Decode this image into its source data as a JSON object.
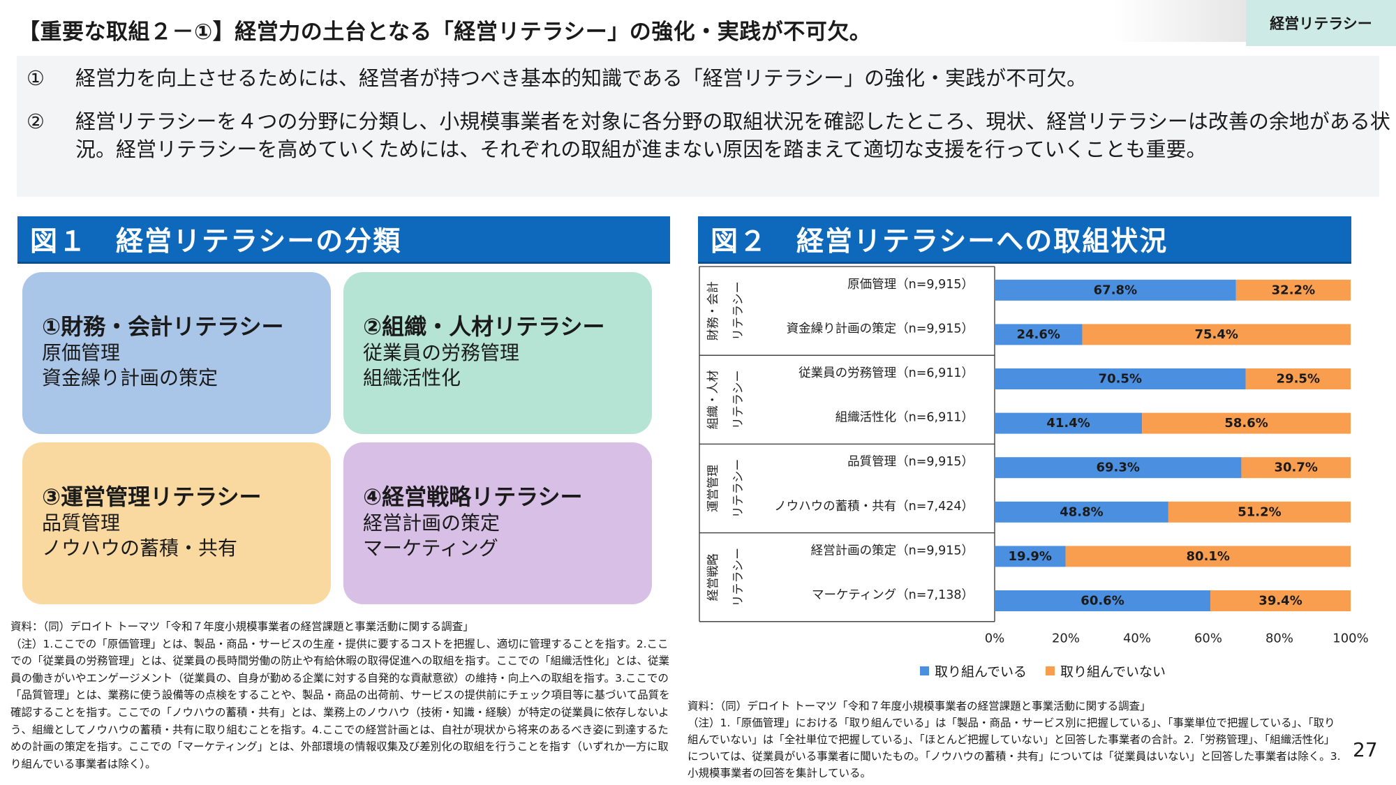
{
  "header": {
    "title": "【重要な取組２－①】経営力の土台となる「経営リテラシー」の強化・実践が不可欠。",
    "tag": "経営リテラシー"
  },
  "summary": [
    {
      "num": "①",
      "text": "経営力を向上させるためには、経営者が持つべき基本的知識である「経営リテラシー」の強化・実践が不可欠。"
    },
    {
      "num": "②",
      "text": "経営リテラシーを４つの分野に分類し、小規模事業者を対象に各分野の取組状況を確認したところ、現状、経営リテラシーは改善の余地がある状況。経営リテラシーを高めていくためには、それぞれの取組が進まない原因を踏まえて適切な支援を行っていくことも重要。"
    }
  ],
  "fig1": {
    "title": "図１　経営リテラシーの分類",
    "cards": [
      {
        "title": "①財務・会計リテラシー",
        "items": [
          "原価管理",
          "資金繰り計画の策定"
        ],
        "color": "#a9c5e8"
      },
      {
        "title": "②組織・人材リテラシー",
        "items": [
          "従業員の労務管理",
          "組織活性化"
        ],
        "color": "#b5e3d4"
      },
      {
        "title": "③運営管理リテラシー",
        "items": [
          "品質管理",
          "ノウハウの蓄積・共有"
        ],
        "color": "#fad9a1"
      },
      {
        "title": "④経営戦略リテラシー",
        "items": [
          "経営計画の策定",
          "マーケティング"
        ],
        "color": "#d8bfe6"
      }
    ],
    "source": "資料：（同）デロイト トーマツ「令和７年度小規模事業者の経営課題と事業活動に関する調査」",
    "note": "（注）1.ここでの「原価管理」とは、製品・商品・サービスの生産・提供に要するコストを把握し、適切に管理することを指す。2.ここでの「従業員の労務管理」とは、従業員の長時間労働の防止や有給休暇の取得促進への取組を指す。ここでの「組織活性化」とは、従業員の働きがいやエンゲージメント（従業員の、自身が勤める企業に対する自発的な貢献意欲）の維持・向上への取組を指す。3.ここでの「品質管理」とは、業務に使う設備等の点検をすることや、製品・商品の出荷前、サービスの提供前にチェック項目等に基づいて品質を確認することを指す。ここでの「ノウハウの蓄積・共有」とは、業務上のノウハウ（技術・知識・経験）が特定の従業員に依存しないよう、組織としてノウハウの蓄積・共有に取り組むことを指す。4.ここでの経営計画とは、自社が現状から将来のあるべき姿に到達するための計画の策定を指す。ここでの「マーケティング」とは、外部環境の情報収集及び差別化の取組を行うことを指す（いずれか一方に取り組んでいる事業者は除く）。"
  },
  "fig2": {
    "title": "図２　経営リテラシーへの取組状況",
    "source": "資料：（同）デロイト トーマツ「令和７年度小規模事業者の経営課題と事業活動に関する調査」",
    "note": "（注）1.「原価管理」における「取り組んでいる」は「製品・商品・サービス別に把握している」、「事業単位で把握している」、「取り組んでいない」は「全社単位で把握している」、「ほとんど把握していない」と回答した事業者の合計。2.「労務管理」、「組織活性化」については、従業員がいる事業者に聞いたもの。「ノウハウの蓄積・共有」については「従業員はいない」と回答した事業者は除く。3.小規模事業者の回答を集計している。"
  },
  "chart_data": {
    "type": "bar",
    "orientation": "horizontal",
    "stacked": true,
    "groups": [
      {
        "label_lines": [
          "財務・会計",
          "リテラシー"
        ],
        "rows": [
          0,
          1
        ]
      },
      {
        "label_lines": [
          "組織・人材",
          "リテラシー"
        ],
        "rows": [
          2,
          3
        ]
      },
      {
        "label_lines": [
          "運営管理",
          "リテラシー"
        ],
        "rows": [
          4,
          5
        ]
      },
      {
        "label_lines": [
          "経営戦略",
          "リテラシー"
        ],
        "rows": [
          6,
          7
        ]
      }
    ],
    "categories": [
      "原価管理（n=9,915）",
      "資金繰り計画の策定（n=9,915）",
      "従業員の労務管理（n=6,911）",
      "組織活性化（n=6,911）",
      "品質管理（n=9,915）",
      "ノウハウの蓄積・共有（n=7,424）",
      "経営計画の策定（n=9,915）",
      "マーケティング（n=7,138）"
    ],
    "series": [
      {
        "name": "取り組んでいる",
        "color": "#4a8fe0",
        "values": [
          67.8,
          24.6,
          70.5,
          41.4,
          69.3,
          48.8,
          19.9,
          60.6
        ]
      },
      {
        "name": "取り組んでいない",
        "color": "#f99e4e",
        "values": [
          32.2,
          75.4,
          29.5,
          58.6,
          30.7,
          51.2,
          80.1,
          39.4
        ]
      }
    ],
    "value_suffix": "%",
    "xlim": [
      0,
      100
    ],
    "xticks": [
      "0%",
      "20%",
      "40%",
      "60%",
      "80%",
      "100%"
    ],
    "legend_position": "bottom"
  },
  "page_number": "27"
}
